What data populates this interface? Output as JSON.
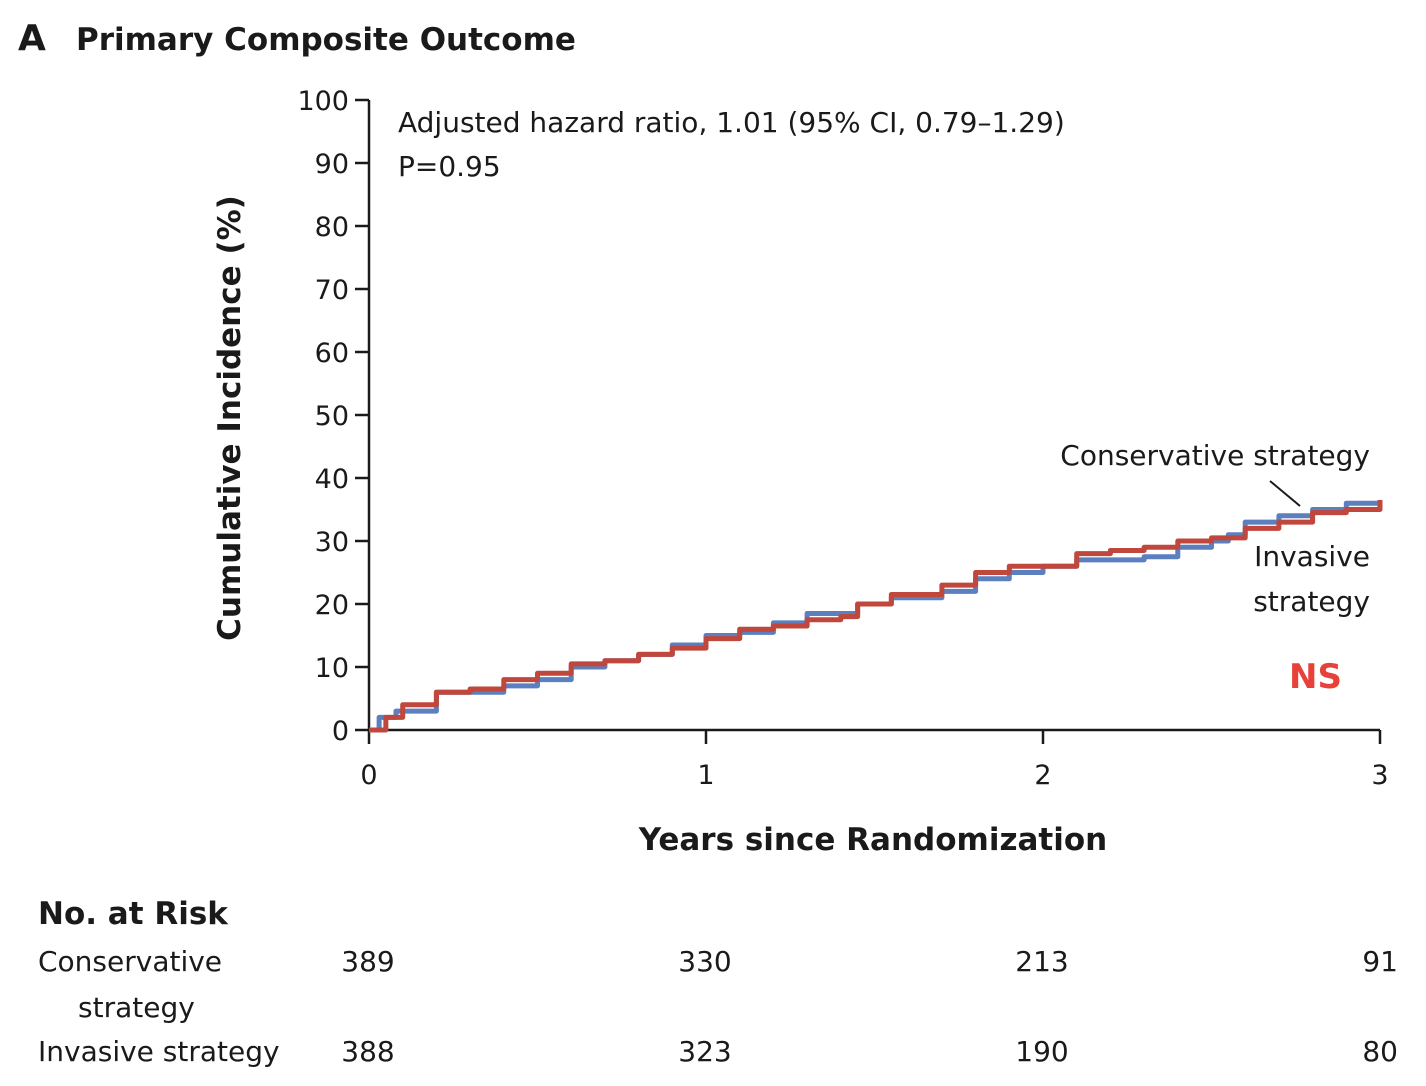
{
  "panel": {
    "letter": "A",
    "title": "Primary Composite Outcome"
  },
  "annotations": {
    "hr_text": "Adjusted hazard ratio, 1.01 (95% CI, 0.79–1.29)",
    "p_text": "P=0.95",
    "ns_text": "NS"
  },
  "series_labels": {
    "conservative": "Conservative strategy",
    "invasive_line1": "Invasive",
    "invasive_line2": "strategy"
  },
  "risk_table": {
    "title": "No. at Risk",
    "rows": [
      {
        "label_line1": "Conservative",
        "label_line2": "strategy",
        "values": [
          "389",
          "330",
          "213",
          "91"
        ]
      },
      {
        "label_line1": "Invasive strategy",
        "label_line2": "",
        "values": [
          "388",
          "323",
          "190",
          "80"
        ]
      }
    ]
  },
  "colors": {
    "conservative": "#5b7fbf",
    "invasive": "#c0473b",
    "ns": "#e8413a",
    "axis": "#1a1a1a"
  },
  "chart_data": {
    "type": "line",
    "title": "Primary Composite Outcome",
    "xlabel": "Years since Randomization",
    "ylabel": "Cumulative Incidence (%)",
    "xlim": [
      0,
      3
    ],
    "ylim": [
      0,
      100
    ],
    "xticks": [
      0,
      1,
      2,
      3
    ],
    "yticks": [
      0,
      10,
      20,
      30,
      40,
      50,
      60,
      70,
      80,
      90,
      100
    ],
    "grid": false,
    "series": [
      {
        "name": "Conservative strategy",
        "color": "#5b7fbf",
        "x": [
          0,
          0.03,
          0.08,
          0.15,
          0.2,
          0.3,
          0.4,
          0.5,
          0.6,
          0.7,
          0.8,
          0.9,
          1.0,
          1.1,
          1.2,
          1.3,
          1.4,
          1.45,
          1.55,
          1.7,
          1.8,
          1.9,
          2.0,
          2.1,
          2.2,
          2.3,
          2.4,
          2.5,
          2.55,
          2.6,
          2.7,
          2.8,
          2.9,
          3.0
        ],
        "y": [
          0,
          2,
          3,
          3,
          6,
          6,
          7,
          8,
          10,
          11,
          12,
          13.5,
          15,
          15.5,
          17,
          18.5,
          18.5,
          20,
          21,
          22,
          24,
          25,
          26,
          27,
          27,
          27.5,
          29,
          30,
          31,
          33,
          34,
          35,
          36,
          36.5
        ]
      },
      {
        "name": "Invasive strategy",
        "color": "#c0473b",
        "x": [
          0,
          0.05,
          0.1,
          0.2,
          0.3,
          0.4,
          0.5,
          0.6,
          0.7,
          0.8,
          0.9,
          1.0,
          1.1,
          1.2,
          1.3,
          1.4,
          1.45,
          1.55,
          1.7,
          1.8,
          1.9,
          2.0,
          2.1,
          2.2,
          2.3,
          2.4,
          2.5,
          2.6,
          2.7,
          2.8,
          2.9,
          3.0
        ],
        "y": [
          0,
          2,
          4,
          6,
          6.5,
          8,
          9,
          10.5,
          11,
          12,
          13,
          14.5,
          16,
          16.5,
          17.5,
          18,
          20,
          21.5,
          23,
          25,
          26,
          26,
          28,
          28.5,
          29,
          30,
          30.5,
          32,
          33,
          34.5,
          35,
          36.5
        ]
      }
    ]
  }
}
